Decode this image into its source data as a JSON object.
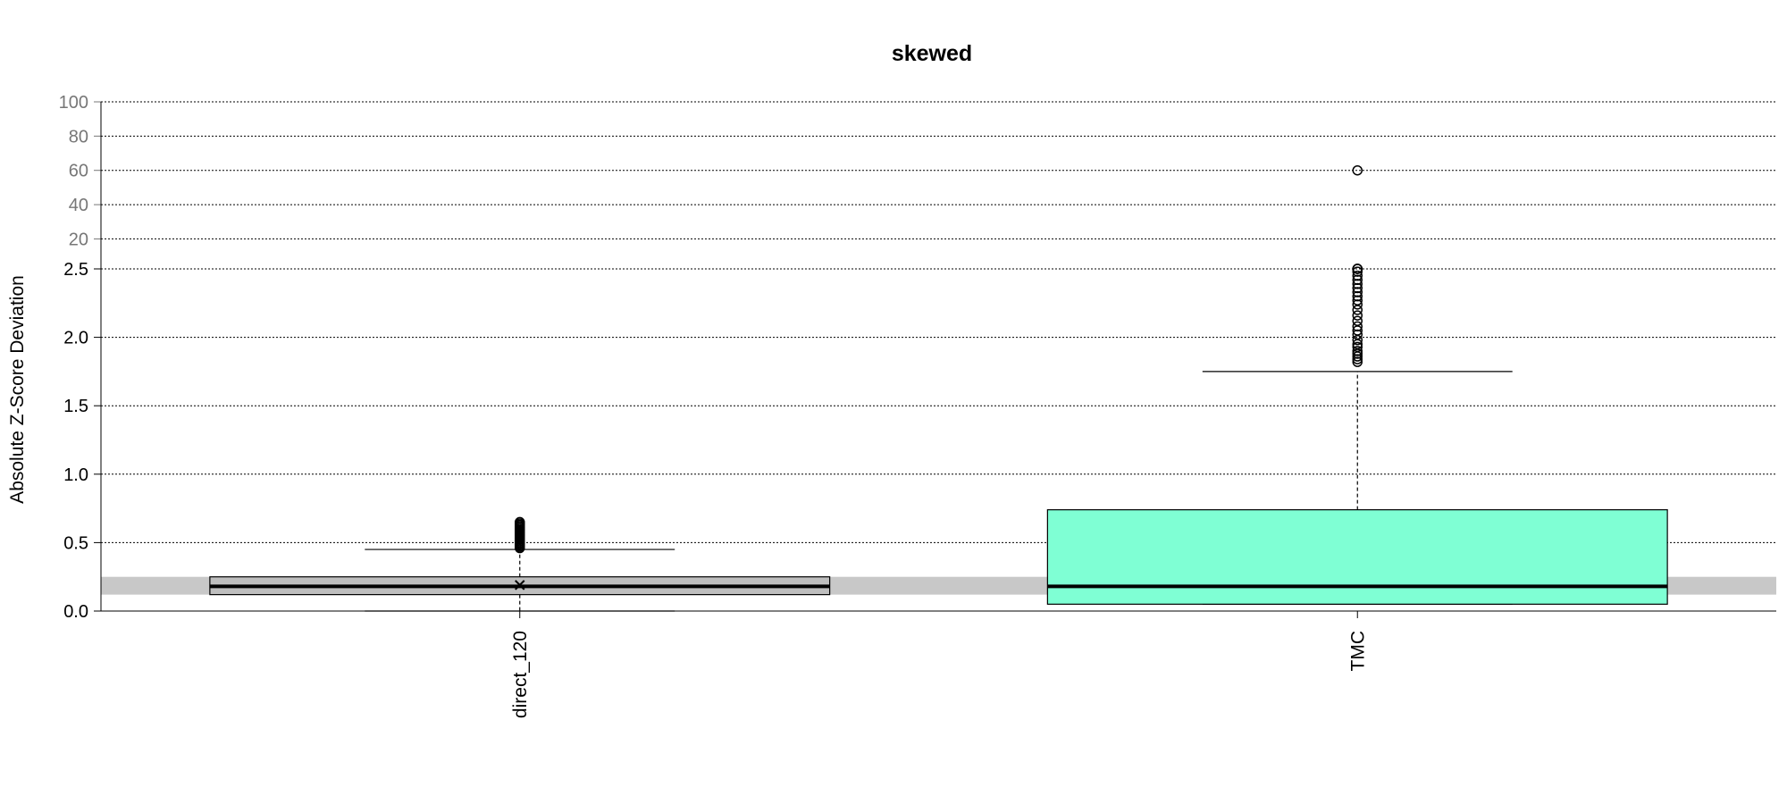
{
  "chart_data": {
    "type": "boxplot",
    "title": "skewed",
    "ylabel": "Absolute Z-Score Deviation",
    "xlabel": "",
    "y_axis": {
      "broken": true,
      "lower": {
        "range": [
          0,
          2.5
        ],
        "ticks": [
          "0.0",
          "0.5",
          "1.0",
          "1.5",
          "2.0",
          "2.5"
        ]
      },
      "upper": {
        "range": [
          2.5,
          100
        ],
        "ticks": [
          "20",
          "40",
          "60",
          "80",
          "100"
        ]
      }
    },
    "grid": true,
    "reference_band": {
      "ymin": 0.12,
      "ymax": 0.25,
      "color": "#c8c8c8"
    },
    "categories": [
      "direct_120",
      "TMC"
    ],
    "boxes": [
      {
        "name": "direct_120",
        "fill": "#bebebe",
        "whisker_low": 0.0,
        "q1": 0.12,
        "median": 0.18,
        "q3": 0.25,
        "whisker_high": 0.45,
        "mean": 0.19,
        "outliers": [
          0.46,
          0.47,
          0.48,
          0.49,
          0.5,
          0.51,
          0.52,
          0.53,
          0.54,
          0.55,
          0.56,
          0.57,
          0.58,
          0.59,
          0.6,
          0.61,
          0.62,
          0.63,
          0.64,
          0.65
        ]
      },
      {
        "name": "TMC",
        "fill": "#7fffd4",
        "whisker_low": 0.05,
        "q1": 0.05,
        "median": 0.18,
        "q3": 0.74,
        "whisker_high": 1.75,
        "outliers": [
          1.82,
          1.84,
          1.86,
          1.88,
          1.9,
          1.93,
          1.95,
          1.98,
          2.02,
          2.05,
          2.08,
          2.12,
          2.16,
          2.2,
          2.24,
          2.27,
          2.3,
          2.33,
          2.36,
          2.39,
          2.42,
          2.45,
          2.48,
          2.51,
          2.54,
          2.56,
          60
        ]
      }
    ]
  }
}
